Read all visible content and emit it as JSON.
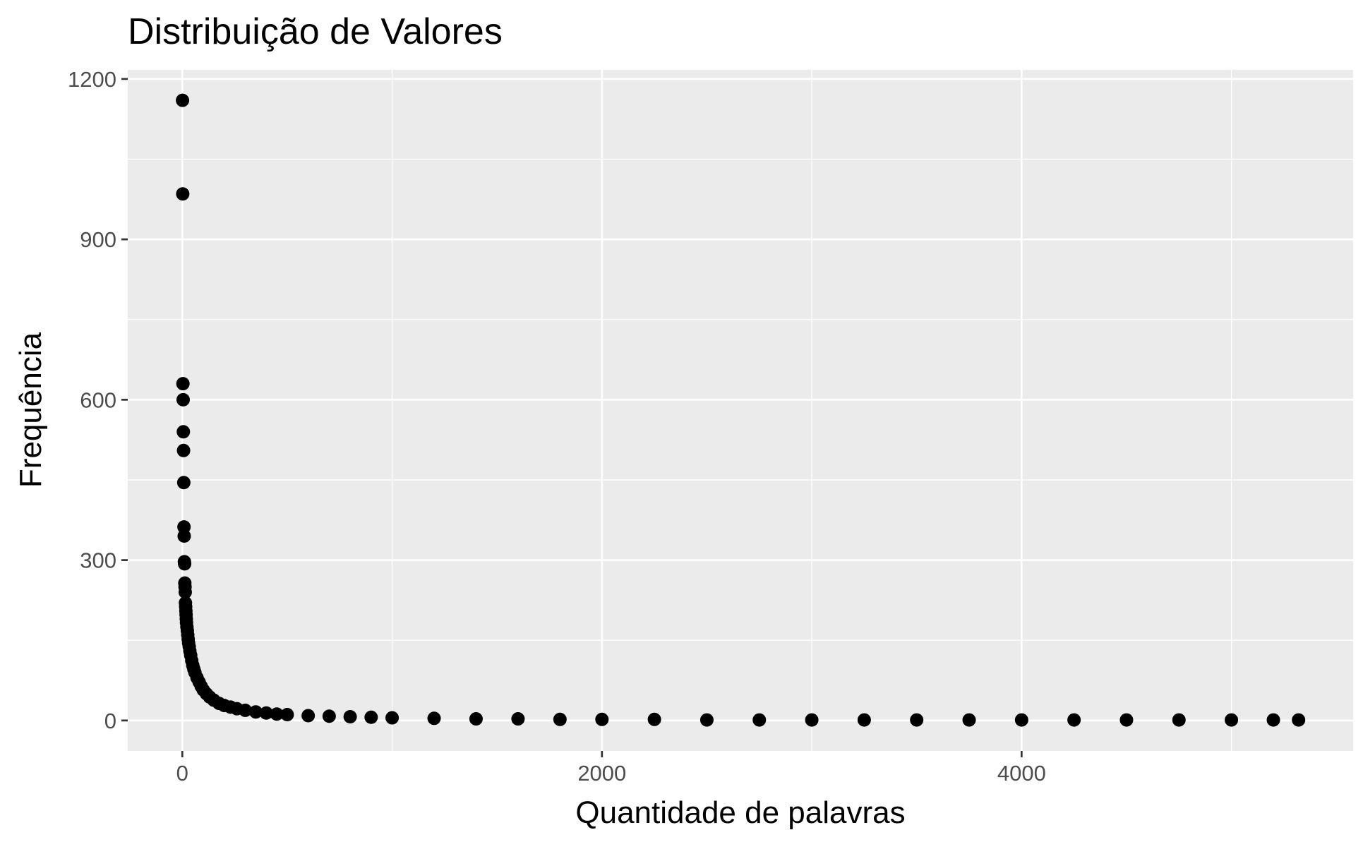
{
  "chart_data": {
    "type": "scatter",
    "title": "Distribuição de Valores",
    "xlabel": "Quantidade de palavras",
    "ylabel": "Frequência",
    "xlim": [
      -260,
      5580
    ],
    "ylim": [
      -57,
      1217
    ],
    "x_ticks": [
      0,
      2000,
      4000
    ],
    "x_tick_labels": [
      "0",
      "2000",
      "4000"
    ],
    "x_minor_ticks": [
      1000,
      3000,
      5000
    ],
    "y_ticks": [
      0,
      300,
      600,
      900,
      1200
    ],
    "y_tick_labels": [
      "0",
      "300",
      "600",
      "900",
      "1200"
    ],
    "y_minor_ticks": [
      150,
      450,
      750,
      1050
    ],
    "grid": true,
    "legend": "none",
    "colors": {
      "panel_background": "#ebebeb",
      "grid_line": "#ffffff",
      "point": "#000000",
      "tick_label": "#4d4d4d",
      "tick_mark": "#333333"
    },
    "series": [
      {
        "x": [
          1,
          2,
          3,
          4,
          5,
          6,
          7,
          8,
          9,
          10,
          11,
          12,
          13,
          14,
          15,
          16,
          17,
          18,
          19,
          20,
          22,
          24,
          26,
          28,
          30,
          33,
          36,
          40,
          45,
          50,
          55,
          60,
          70,
          80,
          90,
          100,
          115,
          130,
          150,
          175,
          200,
          230,
          260,
          300,
          350,
          400,
          450,
          500,
          600,
          700,
          800,
          900,
          1000,
          1200,
          1400,
          1600,
          1800,
          2000,
          2250,
          2500,
          2750,
          3000,
          3250,
          3500,
          3750,
          4000,
          4250,
          4500,
          4750,
          5000,
          5200,
          5320
        ],
        "y": [
          1160,
          985,
          630,
          600,
          540,
          505,
          445,
          362,
          345,
          297,
          293,
          257,
          250,
          240,
          220,
          213,
          205,
          198,
          190,
          183,
          175,
          168,
          160,
          152,
          145,
          138,
          130,
          122,
          112,
          103,
          96,
          90,
          80,
          72,
          64,
          57,
          50,
          44,
          38,
          32,
          28,
          25,
          22,
          19,
          16,
          14,
          12,
          11,
          9,
          8,
          7,
          6,
          5,
          4,
          3,
          3,
          2,
          2,
          2,
          1,
          1,
          1,
          1,
          1,
          1,
          1,
          1,
          1,
          1,
          1,
          1,
          1
        ]
      }
    ]
  }
}
